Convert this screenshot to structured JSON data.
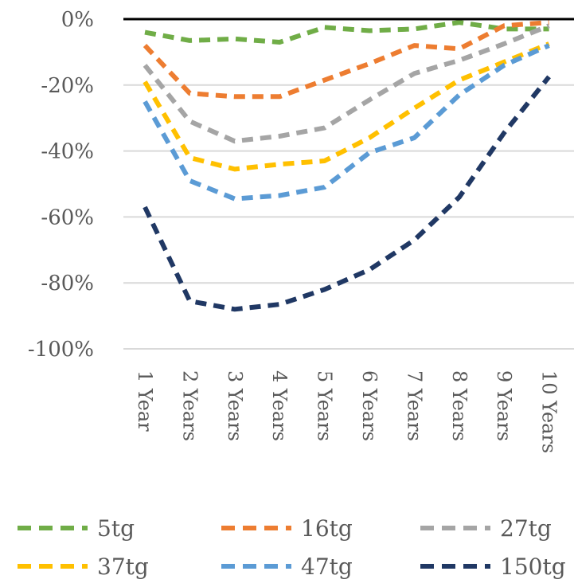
{
  "chart_data": {
    "type": "line",
    "title": "",
    "xlabel": "",
    "ylabel": "",
    "categories": [
      "1 Year",
      "2 Years",
      "3 Years",
      "4 Years",
      "5 Years",
      "6 Years",
      "7 Years",
      "8 Years",
      "9 Years",
      "10 Years"
    ],
    "ylim": [
      -100,
      0
    ],
    "y_ticks": [
      0,
      -20,
      -40,
      -60,
      -80,
      -100
    ],
    "y_tick_labels": [
      "0%",
      "-20%",
      "-40%",
      "-60%",
      "-80%",
      "-100%"
    ],
    "grid": "horizontal",
    "legend_position": "bottom",
    "series": [
      {
        "name": "5tg",
        "color": "#70AD47",
        "values": [
          -4,
          -6.5,
          -6,
          -7,
          -2.5,
          -3.5,
          -3,
          -1,
          -3,
          -3
        ]
      },
      {
        "name": "16tg",
        "color": "#ED7D31",
        "values": [
          -8,
          -22.5,
          -23.5,
          -23.5,
          -18.5,
          -13.5,
          -8,
          -9,
          -2,
          -1
        ]
      },
      {
        "name": "27tg",
        "color": "#A5A5A5",
        "values": [
          -14,
          -31,
          -37,
          -35.5,
          -33,
          -24.5,
          -16.5,
          -12.5,
          -7.5,
          -2
        ]
      },
      {
        "name": "37tg",
        "color": "#FFC000",
        "values": [
          -19,
          -42,
          -45.5,
          -44,
          -43,
          -36,
          -27,
          -18.5,
          -13,
          -7.5
        ]
      },
      {
        "name": "47tg",
        "color": "#5B9BD5",
        "values": [
          -25,
          -49,
          -54.5,
          -53.5,
          -51,
          -40.5,
          -36,
          -23,
          -14,
          -8
        ]
      },
      {
        "name": "150tg",
        "color": "#203864",
        "values": [
          -57,
          -85.5,
          -88,
          -86.5,
          -82,
          -76,
          -67,
          -54,
          -34.5,
          -17.5
        ]
      }
    ]
  }
}
